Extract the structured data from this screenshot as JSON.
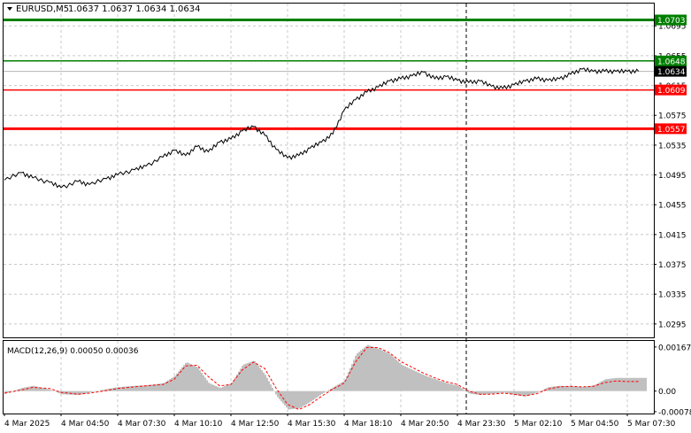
{
  "header": {
    "symbol": "EURUSD,M5",
    "ohlc": "1.0637 1.0637 1.0634 1.0634"
  },
  "colors": {
    "line": "#000000",
    "grid": "#c8c8c8",
    "support": "#ff0000",
    "resistance": "#008000",
    "macd_hist": "#c0c0c0",
    "macd_signal": "#ff0000",
    "current_price_bg": "#000000",
    "current_price_line": "#b4b4b4"
  },
  "chart_data": [
    {
      "type": "line",
      "title": "EURUSD,M5",
      "ylim": [
        1.0277,
        1.0725
      ],
      "y_ticks": [
        "1.0695",
        "1.0655",
        "1.0615",
        "1.0575",
        "1.0535",
        "1.0495",
        "1.0455",
        "1.0415",
        "1.0375",
        "1.0335",
        "1.0295"
      ],
      "x_ticks": [
        "4 Mar 2025",
        "4 Mar 04:50",
        "4 Mar 07:30",
        "4 Mar 10:10",
        "4 Mar 12:50",
        "4 Mar 15:30",
        "4 Mar 18:10",
        "4 Mar 20:50",
        "4 Mar 23:30",
        "5 Mar 02:10",
        "5 Mar 04:50",
        "5 Mar 07:30"
      ],
      "x_index_range": [
        0,
        11
      ],
      "series": [
        {
          "x": [
            0,
            0.3,
            0.5,
            0.8,
            1.0,
            1.3,
            1.5,
            1.8,
            2.0,
            2.3,
            2.5,
            2.8,
            3.0,
            3.2,
            3.4,
            3.6,
            3.8,
            4.0,
            4.2,
            4.4,
            4.6,
            4.8,
            5.0,
            5.2,
            5.4,
            5.6,
            5.8,
            6.0,
            6.2,
            6.4,
            6.6,
            6.8,
            7.0,
            7.2,
            7.4,
            7.6,
            7.8,
            8.0,
            8.2,
            8.4,
            8.6,
            8.8,
            9.0,
            9.2,
            9.4,
            9.6,
            9.8,
            10.0,
            10.2,
            10.4,
            10.6,
            10.8,
            11.0,
            11.2
          ],
          "y": [
            1.0488,
            1.0498,
            1.0491,
            1.0485,
            1.0478,
            1.0486,
            1.0482,
            1.049,
            1.0495,
            1.0502,
            1.0507,
            1.0519,
            1.0528,
            1.0521,
            1.0533,
            1.0526,
            1.0539,
            1.0543,
            1.0554,
            1.056,
            1.0548,
            1.0529,
            1.0518,
            1.0521,
            1.0531,
            1.0539,
            1.055,
            1.0582,
            1.0596,
            1.0606,
            1.0613,
            1.0621,
            1.0624,
            1.0628,
            1.0633,
            1.0624,
            1.0627,
            1.0622,
            1.0619,
            1.0621,
            1.0614,
            1.0611,
            1.0616,
            1.0621,
            1.0624,
            1.0622,
            1.0624,
            1.063,
            1.0637,
            1.0634,
            1.0634,
            1.0634,
            1.0634,
            1.0634
          ]
        }
      ],
      "levels": [
        {
          "label": "1.0703",
          "value": 1.0703,
          "kind": "resistance"
        },
        {
          "label": "1.0648",
          "value": 1.0648,
          "kind": "resistance"
        },
        {
          "label": "1.0609",
          "value": 1.0609,
          "kind": "support"
        },
        {
          "label": "1.0557",
          "value": 1.0557,
          "kind": "support"
        }
      ],
      "current_price": {
        "label": "1.0634",
        "value": 1.0634
      },
      "grid": true,
      "legend": "none"
    },
    {
      "type": "bar",
      "title": "MACD(12,26,9) 0.00050 0.00036",
      "ylim": [
        -0.00085,
        0.0019
      ],
      "y_ticks": [
        "0.00167",
        "0.00",
        "-0.00078"
      ],
      "series": [
        {
          "name": "histogram",
          "x": [
            0,
            0.3,
            0.5,
            0.8,
            1.0,
            1.3,
            1.5,
            1.8,
            2.0,
            2.3,
            2.5,
            2.8,
            3.0,
            3.2,
            3.4,
            3.6,
            3.8,
            4.0,
            4.2,
            4.4,
            4.6,
            4.8,
            5.0,
            5.2,
            5.4,
            5.6,
            5.8,
            6.0,
            6.2,
            6.4,
            6.6,
            6.8,
            7.0,
            7.2,
            7.4,
            7.6,
            7.8,
            8.0,
            8.2,
            8.4,
            8.6,
            8.8,
            9.0,
            9.2,
            9.4,
            9.6,
            9.8,
            10.0,
            10.2,
            10.4,
            10.6,
            10.8,
            11.0,
            11.2
          ],
          "y": [
            -0.0001,
            0.00012,
            0.0002,
            5e-05,
            -0.00012,
            -0.00015,
            -5e-05,
            8e-05,
            0.00015,
            0.0002,
            0.00022,
            0.0003,
            0.00058,
            0.0011,
            0.0009,
            0.0003,
            0.00012,
            0.0003,
            0.001,
            0.00115,
            0.0006,
            -0.0002,
            -0.0007,
            -0.00065,
            -0.0004,
            -0.0001,
            0.00015,
            0.0004,
            0.0014,
            0.00175,
            0.0016,
            0.0014,
            0.001,
            0.0008,
            0.0006,
            0.00045,
            0.0003,
            0.0002,
            -0.0001,
            -0.00015,
            -0.0001,
            -5e-05,
            -0.00015,
            -0.0002,
            -5e-05,
            0.00015,
            0.0002,
            0.00018,
            0.00015,
            0.00022,
            0.00045,
            0.0005,
            0.0005,
            0.0005
          ]
        },
        {
          "name": "signal",
          "x": [
            0,
            0.3,
            0.5,
            0.8,
            1.0,
            1.3,
            1.5,
            1.8,
            2.0,
            2.3,
            2.5,
            2.8,
            3.0,
            3.2,
            3.4,
            3.6,
            3.8,
            4.0,
            4.2,
            4.4,
            4.6,
            4.8,
            5.0,
            5.2,
            5.4,
            5.6,
            5.8,
            6.0,
            6.2,
            6.4,
            6.6,
            6.8,
            7.0,
            7.2,
            7.4,
            7.6,
            7.8,
            8.0,
            8.2,
            8.4,
            8.6,
            8.8,
            9.0,
            9.2,
            9.4,
            9.6,
            9.8,
            10.0,
            10.2,
            10.4,
            10.6,
            10.8,
            11.0,
            11.2
          ],
          "y": [
            -8e-05,
            4e-05,
            0.00014,
            0.0001,
            -5e-05,
            -0.00012,
            -8e-05,
            2e-05,
            0.0001,
            0.00016,
            0.0002,
            0.00025,
            0.00045,
            0.00095,
            0.00098,
            0.00055,
            0.0002,
            0.00025,
            0.0008,
            0.0011,
            0.00085,
            0.0001,
            -0.0005,
            -0.0007,
            -0.0005,
            -0.0002,
            8e-05,
            0.0003,
            0.0011,
            0.00165,
            0.00165,
            0.00145,
            0.00112,
            0.0009,
            0.00068,
            0.0005,
            0.00035,
            0.00025,
            0.0,
            -0.00012,
            -0.00012,
            -8e-05,
            -0.00012,
            -0.00018,
            -0.0001,
            8e-05,
            0.00016,
            0.00018,
            0.00016,
            0.00018,
            0.00032,
            0.00038,
            0.00036,
            0.00036
          ]
        }
      ]
    }
  ]
}
